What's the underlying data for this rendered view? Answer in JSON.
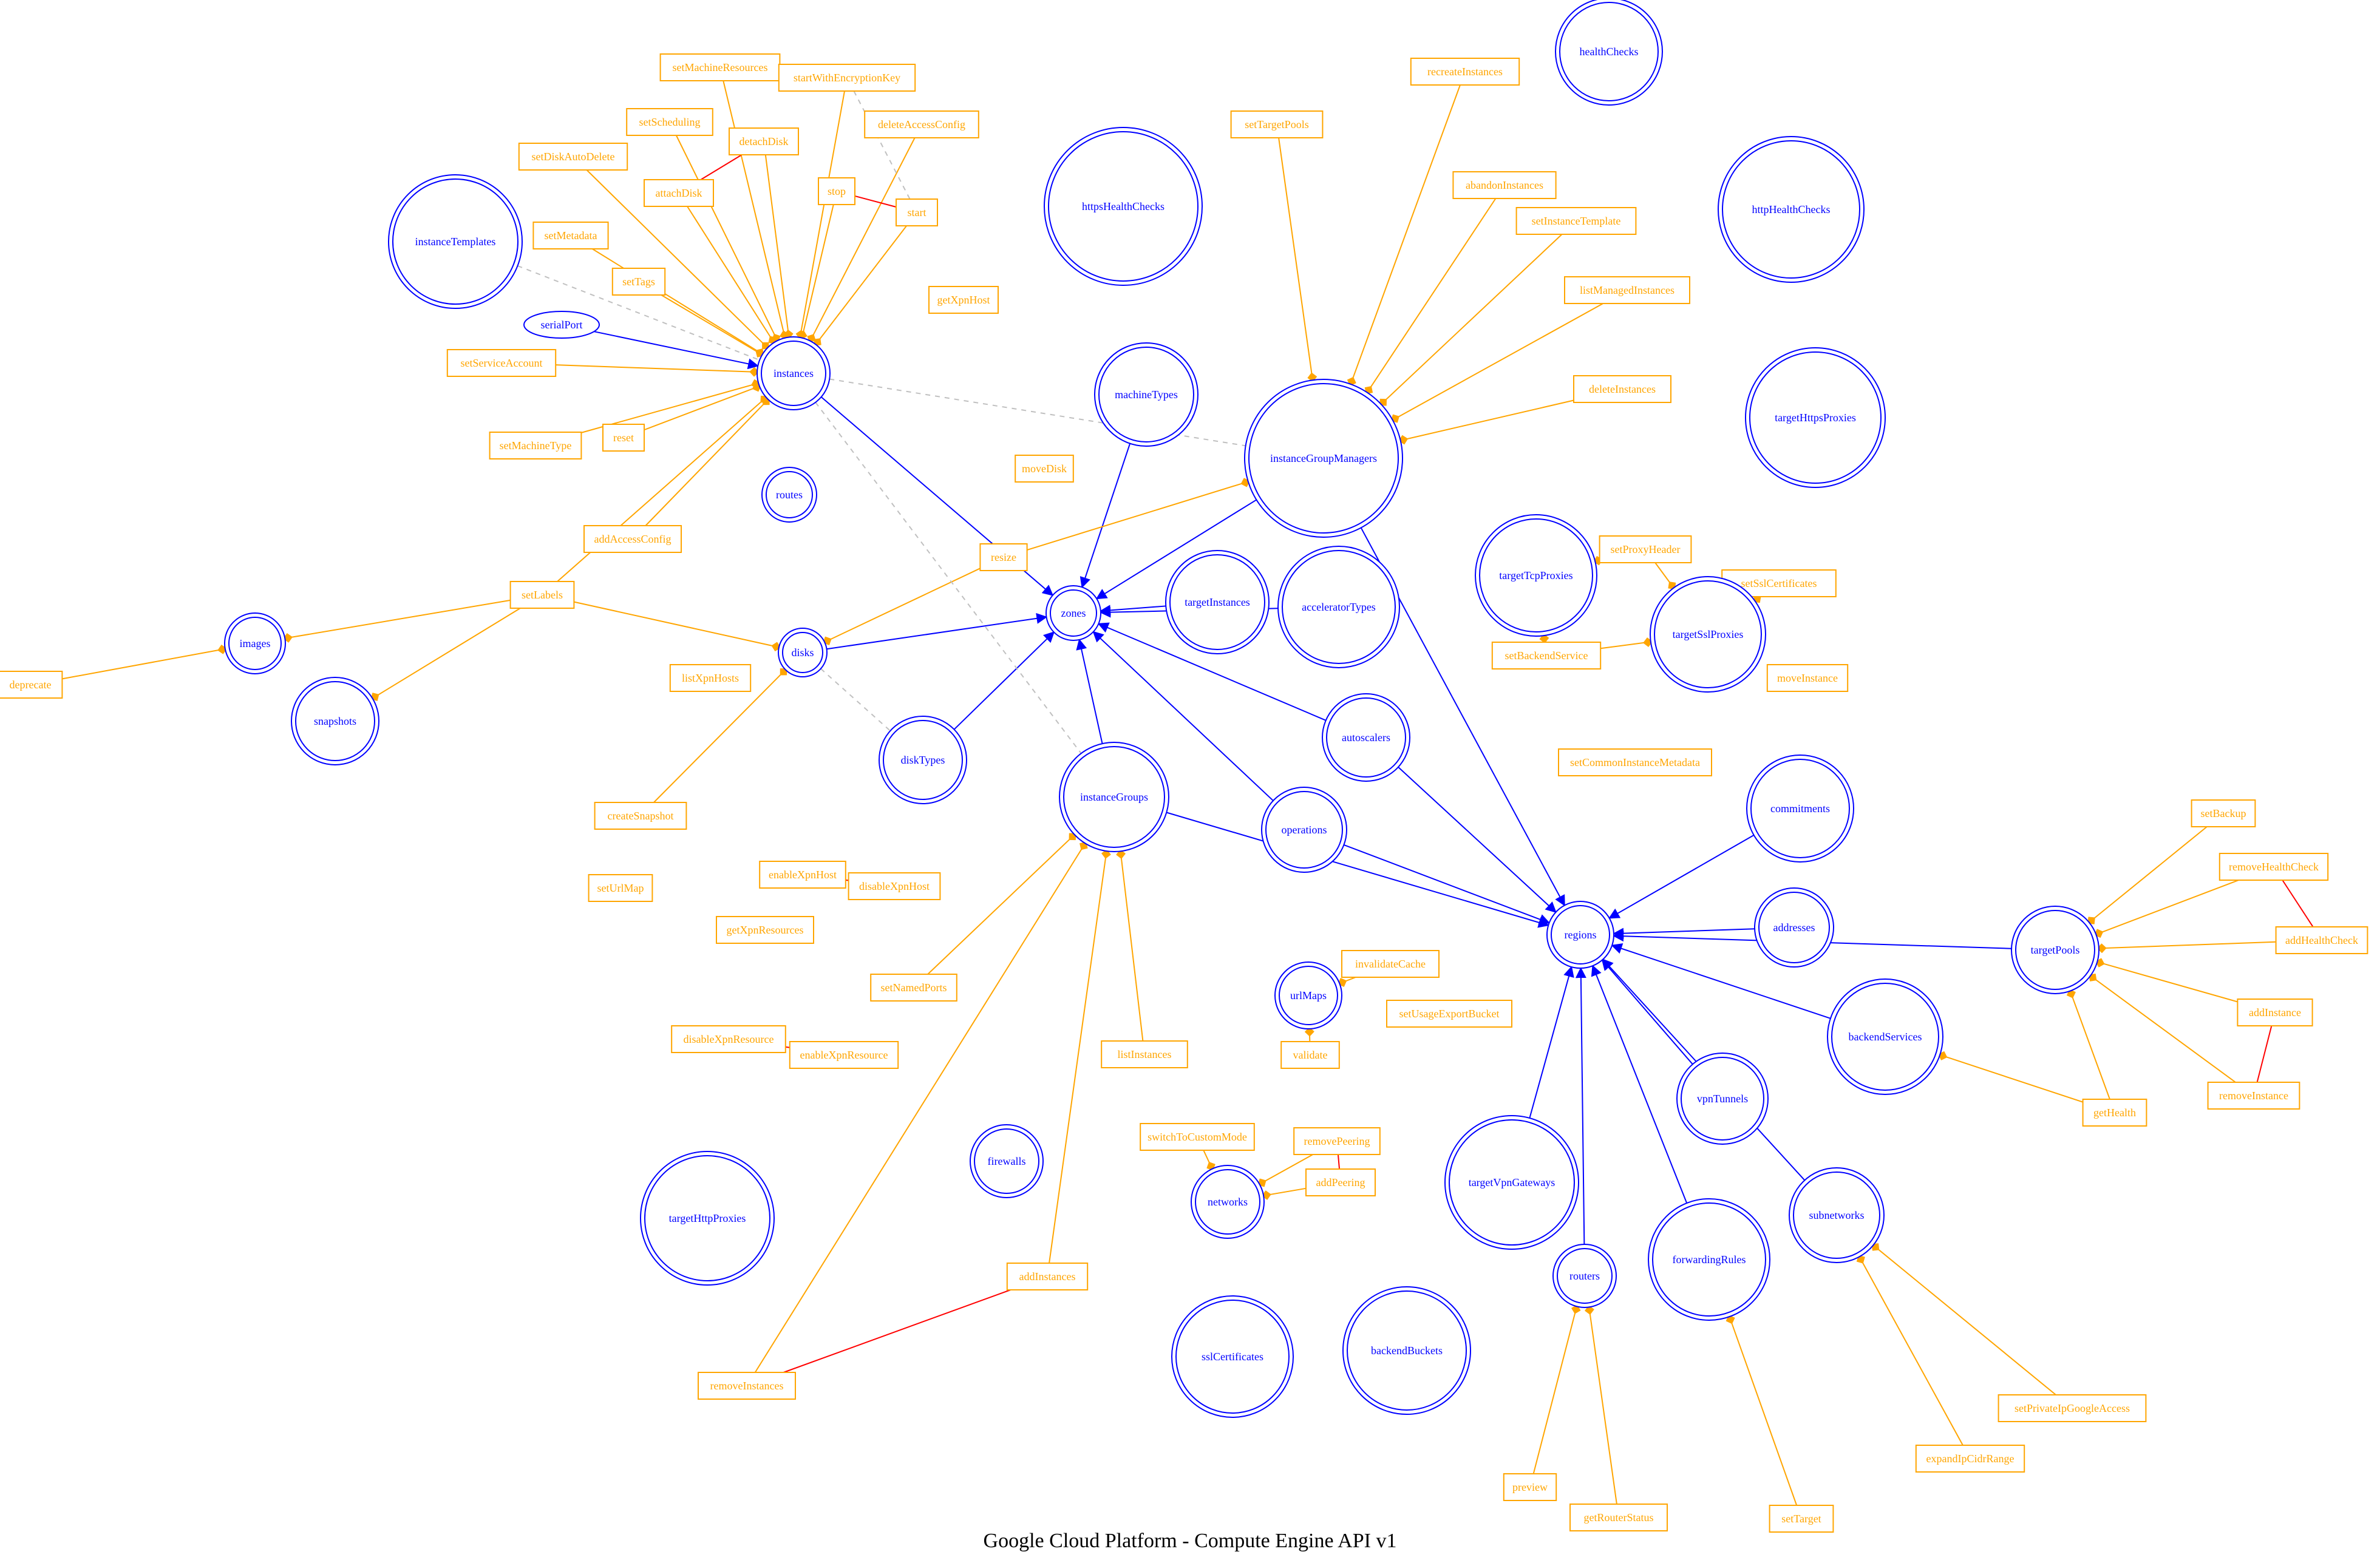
{
  "title": "Google Cloud Platform - Compute Engine API v1",
  "colors": {
    "resource": "#0000ff",
    "action": "#ffa500",
    "conflict": "#ff0000",
    "dashed": "#c0c0c0"
  },
  "resources": [
    {
      "id": "instances",
      "label": "instances"
    },
    {
      "id": "instanceTemplates",
      "label": "instanceTemplates"
    },
    {
      "id": "images",
      "label": "images"
    },
    {
      "id": "snapshots",
      "label": "snapshots"
    },
    {
      "id": "routes",
      "label": "routes"
    },
    {
      "id": "disks",
      "label": "disks"
    },
    {
      "id": "zones",
      "label": "zones"
    },
    {
      "id": "diskTypes",
      "label": "diskTypes"
    },
    {
      "id": "machineTypes",
      "label": "machineTypes"
    },
    {
      "id": "httpsHealthChecks",
      "label": "httpsHealthChecks"
    },
    {
      "id": "healthChecks",
      "label": "healthChecks"
    },
    {
      "id": "httpHealthChecks",
      "label": "httpHealthChecks"
    },
    {
      "id": "instanceGroupManagers",
      "label": "instanceGroupManagers"
    },
    {
      "id": "targetHttpsProxies",
      "label": "targetHttpsProxies"
    },
    {
      "id": "targetTcpProxies",
      "label": "targetTcpProxies"
    },
    {
      "id": "targetSslProxies",
      "label": "targetSslProxies"
    },
    {
      "id": "targetInstances",
      "label": "targetInstances"
    },
    {
      "id": "acceleratorTypes",
      "label": "acceleratorTypes"
    },
    {
      "id": "autoscalers",
      "label": "autoscalers"
    },
    {
      "id": "instanceGroups",
      "label": "instanceGroups"
    },
    {
      "id": "operations",
      "label": "operations"
    },
    {
      "id": "regions",
      "label": "regions"
    },
    {
      "id": "commitments",
      "label": "commitments"
    },
    {
      "id": "addresses",
      "label": "addresses"
    },
    {
      "id": "targetPools",
      "label": "targetPools"
    },
    {
      "id": "backendServices",
      "label": "backendServices"
    },
    {
      "id": "vpnTunnels",
      "label": "vpnTunnels"
    },
    {
      "id": "urlMaps",
      "label": "urlMaps"
    },
    {
      "id": "firewalls",
      "label": "firewalls"
    },
    {
      "id": "networks",
      "label": "networks"
    },
    {
      "id": "targetVpnGateways",
      "label": "targetVpnGateways"
    },
    {
      "id": "routers",
      "label": "routers"
    },
    {
      "id": "forwardingRules",
      "label": "forwardingRules"
    },
    {
      "id": "subnetworks",
      "label": "subnetworks"
    },
    {
      "id": "targetHttpProxies",
      "label": "targetHttpProxies"
    },
    {
      "id": "sslCertificates",
      "label": "sslCertificates"
    },
    {
      "id": "backendBuckets",
      "label": "backendBuckets"
    },
    {
      "id": "serialPort",
      "label": "serialPort"
    }
  ],
  "actions": [
    {
      "id": "setMachineResources",
      "label": "setMachineResources"
    },
    {
      "id": "startWithEncryptionKey",
      "label": "startWithEncryptionKey"
    },
    {
      "id": "setScheduling",
      "label": "setScheduling"
    },
    {
      "id": "detachDisk",
      "label": "detachDisk"
    },
    {
      "id": "deleteAccessConfig",
      "label": "deleteAccessConfig"
    },
    {
      "id": "setDiskAutoDelete",
      "label": "setDiskAutoDelete"
    },
    {
      "id": "attachDisk",
      "label": "attachDisk"
    },
    {
      "id": "stop",
      "label": "stop"
    },
    {
      "id": "start",
      "label": "start"
    },
    {
      "id": "setMetadata",
      "label": "setMetadata"
    },
    {
      "id": "setTags",
      "label": "setTags"
    },
    {
      "id": "getXpnHost",
      "label": "getXpnHost"
    },
    {
      "id": "setServiceAccount",
      "label": "setServiceAccount"
    },
    {
      "id": "setMachineType",
      "label": "setMachineType"
    },
    {
      "id": "reset",
      "label": "reset"
    },
    {
      "id": "addAccessConfig",
      "label": "addAccessConfig"
    },
    {
      "id": "moveDisk",
      "label": "moveDisk"
    },
    {
      "id": "resize",
      "label": "resize"
    },
    {
      "id": "setLabels",
      "label": "setLabels"
    },
    {
      "id": "deprecate",
      "label": "deprecate"
    },
    {
      "id": "listXpnHosts",
      "label": "listXpnHosts"
    },
    {
      "id": "createSnapshot",
      "label": "createSnapshot"
    },
    {
      "id": "setUrlMap",
      "label": "setUrlMap"
    },
    {
      "id": "enableXpnHost",
      "label": "enableXpnHost"
    },
    {
      "id": "disableXpnHost",
      "label": "disableXpnHost"
    },
    {
      "id": "getXpnResources",
      "label": "getXpnResources"
    },
    {
      "id": "setNamedPorts",
      "label": "setNamedPorts"
    },
    {
      "id": "disableXpnResource",
      "label": "disableXpnResource"
    },
    {
      "id": "enableXpnResource",
      "label": "enableXpnResource"
    },
    {
      "id": "listInstances",
      "label": "listInstances"
    },
    {
      "id": "addInstances",
      "label": "addInstances"
    },
    {
      "id": "removeInstances",
      "label": "removeInstances"
    },
    {
      "id": "setTargetPools",
      "label": "setTargetPools"
    },
    {
      "id": "recreateInstances",
      "label": "recreateInstances"
    },
    {
      "id": "abandonInstances",
      "label": "abandonInstances"
    },
    {
      "id": "setInstanceTemplate",
      "label": "setInstanceTemplate"
    },
    {
      "id": "listManagedInstances",
      "label": "listManagedInstances"
    },
    {
      "id": "deleteInstances",
      "label": "deleteInstances"
    },
    {
      "id": "setProxyHeader",
      "label": "setProxyHeader"
    },
    {
      "id": "setSslCertificates",
      "label": "setSslCertificates"
    },
    {
      "id": "setBackendService",
      "label": "setBackendService"
    },
    {
      "id": "moveInstance",
      "label": "moveInstance"
    },
    {
      "id": "setCommonInstanceMetadata",
      "label": "setCommonInstanceMetadata"
    },
    {
      "id": "invalidateCache",
      "label": "invalidateCache"
    },
    {
      "id": "validate",
      "label": "validate"
    },
    {
      "id": "setUsageExportBucket",
      "label": "setUsageExportBucket"
    },
    {
      "id": "switchToCustomMode",
      "label": "switchToCustomMode"
    },
    {
      "id": "removePeering",
      "label": "removePeering"
    },
    {
      "id": "addPeering",
      "label": "addPeering"
    },
    {
      "id": "setBackup",
      "label": "setBackup"
    },
    {
      "id": "removeHealthCheck",
      "label": "removeHealthCheck"
    },
    {
      "id": "addHealthCheck",
      "label": "addHealthCheck"
    },
    {
      "id": "addInstance",
      "label": "addInstance"
    },
    {
      "id": "removeInstance",
      "label": "removeInstance"
    },
    {
      "id": "getHealth",
      "label": "getHealth"
    },
    {
      "id": "setPrivateIpGoogleAccess",
      "label": "setPrivateIpGoogleAccess"
    },
    {
      "id": "expandIpCidrRange",
      "label": "expandIpCidrRange"
    },
    {
      "id": "preview",
      "label": "preview"
    },
    {
      "id": "getRouterStatus",
      "label": "getRouterStatus"
    },
    {
      "id": "setTarget",
      "label": "setTarget"
    }
  ],
  "edges": [
    {
      "from": "instances",
      "to": "zones",
      "kind": "resource"
    },
    {
      "from": "serialPort",
      "to": "instances",
      "kind": "resource"
    },
    {
      "from": "disks",
      "to": "zones",
      "kind": "resource"
    },
    {
      "from": "diskTypes",
      "to": "zones",
      "kind": "resource"
    },
    {
      "from": "machineTypes",
      "to": "zones",
      "kind": "resource"
    },
    {
      "from": "instanceGroupManagers",
      "to": "zones",
      "kind": "resource"
    },
    {
      "from": "instanceGroupManagers",
      "to": "regions",
      "kind": "resource"
    },
    {
      "from": "targetInstances",
      "to": "zones",
      "kind": "resource"
    },
    {
      "from": "acceleratorTypes",
      "to": "zones",
      "kind": "resource"
    },
    {
      "from": "autoscalers",
      "to": "zones",
      "kind": "resource"
    },
    {
      "from": "autoscalers",
      "to": "regions",
      "kind": "resource"
    },
    {
      "from": "instanceGroups",
      "to": "zones",
      "kind": "resource"
    },
    {
      "from": "instanceGroups",
      "to": "regions",
      "kind": "resource"
    },
    {
      "from": "operations",
      "to": "zones",
      "kind": "resource"
    },
    {
      "from": "operations",
      "to": "regions",
      "kind": "resource"
    },
    {
      "from": "commitments",
      "to": "regions",
      "kind": "resource"
    },
    {
      "from": "addresses",
      "to": "regions",
      "kind": "resource"
    },
    {
      "from": "targetPools",
      "to": "regions",
      "kind": "resource"
    },
    {
      "from": "backendServices",
      "to": "regions",
      "kind": "resource"
    },
    {
      "from": "vpnTunnels",
      "to": "regions",
      "kind": "resource"
    },
    {
      "from": "targetVpnGateways",
      "to": "regions",
      "kind": "resource"
    },
    {
      "from": "routers",
      "to": "regions",
      "kind": "resource"
    },
    {
      "from": "forwardingRules",
      "to": "regions",
      "kind": "resource"
    },
    {
      "from": "subnetworks",
      "to": "regions",
      "kind": "resource"
    },
    {
      "from": "setMachineResources",
      "to": "instances",
      "kind": "action"
    },
    {
      "from": "startWithEncryptionKey",
      "to": "instances",
      "kind": "action"
    },
    {
      "from": "setScheduling",
      "to": "instances",
      "kind": "action"
    },
    {
      "from": "detachDisk",
      "to": "instances",
      "kind": "action"
    },
    {
      "from": "deleteAccessConfig",
      "to": "instances",
      "kind": "action"
    },
    {
      "from": "setDiskAutoDelete",
      "to": "instances",
      "kind": "action"
    },
    {
      "from": "attachDisk",
      "to": "instances",
      "kind": "action"
    },
    {
      "from": "stop",
      "to": "instances",
      "kind": "action"
    },
    {
      "from": "start",
      "to": "instances",
      "kind": "action"
    },
    {
      "from": "setMetadata",
      "to": "instances",
      "kind": "action"
    },
    {
      "from": "setTags",
      "to": "instances",
      "kind": "action"
    },
    {
      "from": "setServiceAccount",
      "to": "instances",
      "kind": "action"
    },
    {
      "from": "setMachineType",
      "to": "instances",
      "kind": "action"
    },
    {
      "from": "reset",
      "to": "instances",
      "kind": "action"
    },
    {
      "from": "addAccessConfig",
      "to": "instances",
      "kind": "action"
    },
    {
      "from": "setLabels",
      "to": "instances",
      "kind": "action"
    },
    {
      "from": "setLabels",
      "to": "images",
      "kind": "action"
    },
    {
      "from": "setLabels",
      "to": "snapshots",
      "kind": "action"
    },
    {
      "from": "setLabels",
      "to": "disks",
      "kind": "action"
    },
    {
      "from": "deprecate",
      "to": "images",
      "kind": "action"
    },
    {
      "from": "createSnapshot",
      "to": "disks",
      "kind": "action"
    },
    {
      "from": "resize",
      "to": "disks",
      "kind": "action"
    },
    {
      "from": "resize",
      "to": "instanceGroupManagers",
      "kind": "action"
    },
    {
      "from": "setNamedPorts",
      "to": "instanceGroups",
      "kind": "action"
    },
    {
      "from": "listInstances",
      "to": "instanceGroups",
      "kind": "action"
    },
    {
      "from": "addInstances",
      "to": "instanceGroups",
      "kind": "action"
    },
    {
      "from": "removeInstances",
      "to": "instanceGroups",
      "kind": "action"
    },
    {
      "from": "setTargetPools",
      "to": "instanceGroupManagers",
      "kind": "action"
    },
    {
      "from": "recreateInstances",
      "to": "instanceGroupManagers",
      "kind": "action"
    },
    {
      "from": "abandonInstances",
      "to": "instanceGroupManagers",
      "kind": "action"
    },
    {
      "from": "setInstanceTemplate",
      "to": "instanceGroupManagers",
      "kind": "action"
    },
    {
      "from": "listManagedInstances",
      "to": "instanceGroupManagers",
      "kind": "action"
    },
    {
      "from": "deleteInstances",
      "to": "instanceGroupManagers",
      "kind": "action"
    },
    {
      "from": "setProxyHeader",
      "to": "targetTcpProxies",
      "kind": "action"
    },
    {
      "from": "setProxyHeader",
      "to": "targetSslProxies",
      "kind": "action"
    },
    {
      "from": "setBackendService",
      "to": "targetTcpProxies",
      "kind": "action"
    },
    {
      "from": "setBackendService",
      "to": "targetSslProxies",
      "kind": "action"
    },
    {
      "from": "setSslCertificates",
      "to": "targetSslProxies",
      "kind": "action"
    },
    {
      "from": "invalidateCache",
      "to": "urlMaps",
      "kind": "action"
    },
    {
      "from": "validate",
      "to": "urlMaps",
      "kind": "action"
    },
    {
      "from": "switchToCustomMode",
      "to": "networks",
      "kind": "action"
    },
    {
      "from": "removePeering",
      "to": "networks",
      "kind": "action"
    },
    {
      "from": "addPeering",
      "to": "networks",
      "kind": "action"
    },
    {
      "from": "setBackup",
      "to": "targetPools",
      "kind": "action"
    },
    {
      "from": "removeHealthCheck",
      "to": "targetPools",
      "kind": "action"
    },
    {
      "from": "addHealthCheck",
      "to": "targetPools",
      "kind": "action"
    },
    {
      "from": "addInstance",
      "to": "targetPools",
      "kind": "action"
    },
    {
      "from": "removeInstance",
      "to": "targetPools",
      "kind": "action"
    },
    {
      "from": "getHealth",
      "to": "targetPools",
      "kind": "action"
    },
    {
      "from": "getHealth",
      "to": "backendServices",
      "kind": "action"
    },
    {
      "from": "setPrivateIpGoogleAccess",
      "to": "subnetworks",
      "kind": "action"
    },
    {
      "from": "expandIpCidrRange",
      "to": "subnetworks",
      "kind": "action"
    },
    {
      "from": "preview",
      "to": "routers",
      "kind": "action"
    },
    {
      "from": "getRouterStatus",
      "to": "routers",
      "kind": "action"
    },
    {
      "from": "setTarget",
      "to": "forwardingRules",
      "kind": "action"
    },
    {
      "from": "attachDisk",
      "to": "detachDisk",
      "kind": "conflict"
    },
    {
      "from": "stop",
      "to": "start",
      "kind": "conflict"
    },
    {
      "from": "enableXpnHost",
      "to": "disableXpnHost",
      "kind": "conflict"
    },
    {
      "from": "disableXpnResource",
      "to": "enableXpnResource",
      "kind": "conflict"
    },
    {
      "from": "addInstances",
      "to": "removeInstances",
      "kind": "conflict"
    },
    {
      "from": "removePeering",
      "to": "addPeering",
      "kind": "conflict"
    },
    {
      "from": "removeHealthCheck",
      "to": "addHealthCheck",
      "kind": "conflict"
    },
    {
      "from": "addInstance",
      "to": "removeInstance",
      "kind": "conflict"
    },
    {
      "from": "instanceTemplates",
      "to": "instances",
      "kind": "dashed"
    },
    {
      "from": "startWithEncryptionKey",
      "to": "start",
      "kind": "dashed"
    },
    {
      "from": "instances",
      "to": "instanceGroupManagers",
      "kind": "dashed"
    },
    {
      "from": "instances",
      "to": "instanceGroups",
      "kind": "dashed"
    },
    {
      "from": "disks",
      "to": "diskTypes",
      "kind": "dashed"
    }
  ]
}
